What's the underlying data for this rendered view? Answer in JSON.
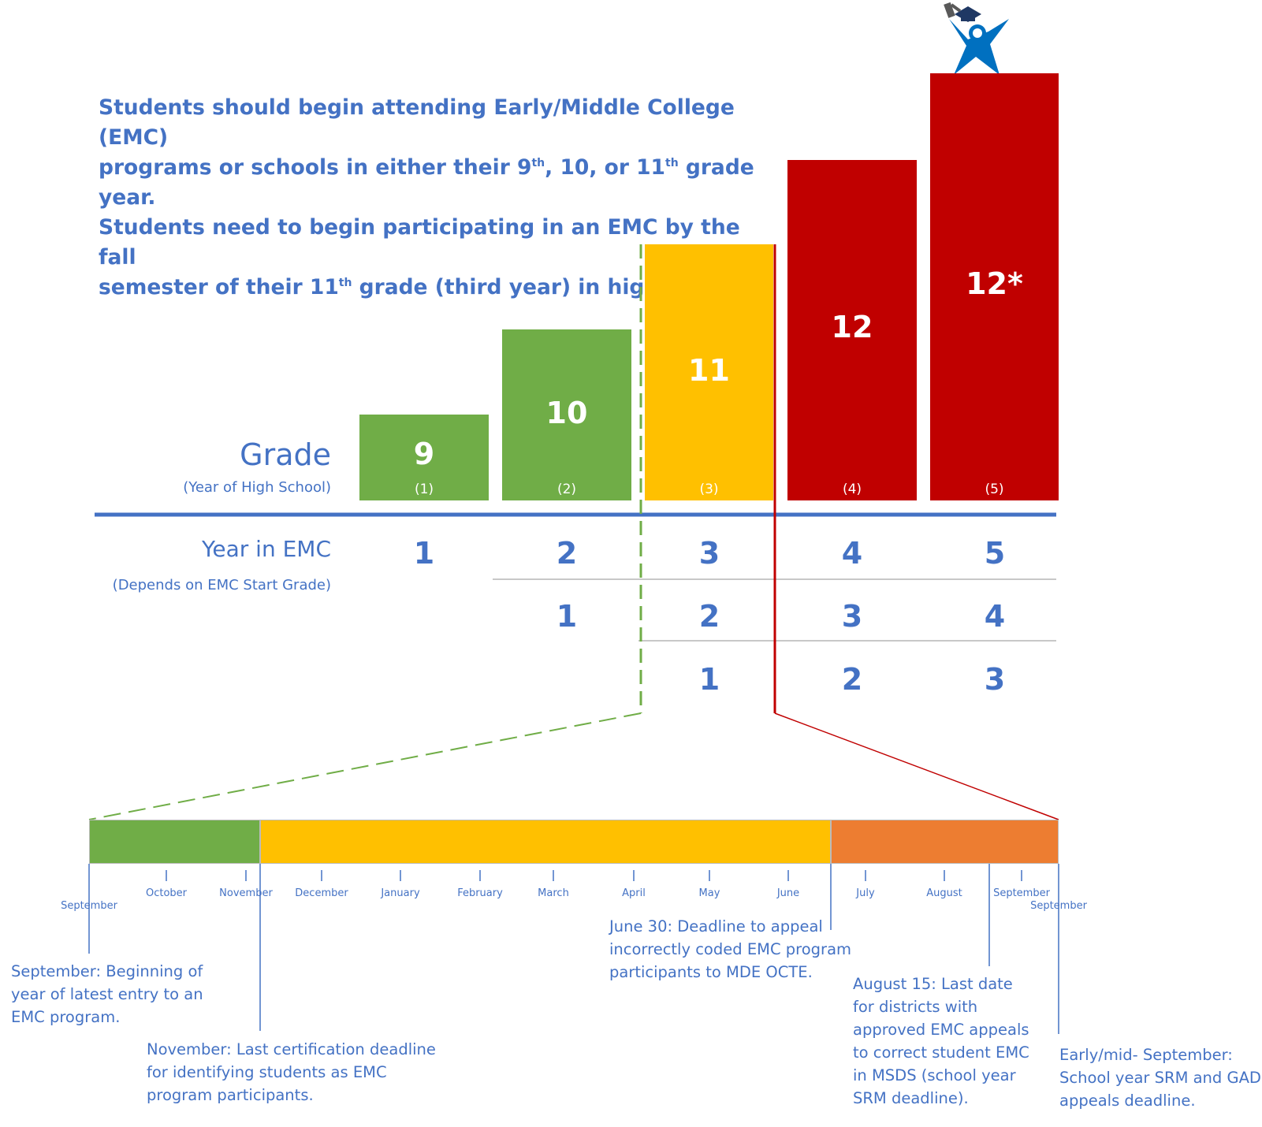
{
  "intro": {
    "line1": "Students should begin attending Early/Middle College (EMC)",
    "line2_a": "programs or schools in either their 9",
    "line2_sup1": "th",
    "line2_b": ", 10, or 11",
    "line2_sup2": "th",
    "line2_c": " grade year.",
    "line3": "Students need to begin participating in an EMC by the fall",
    "line4_a": "semester of their 11",
    "line4_sup": "th",
    "line4_b": " grade (third year) in high school."
  },
  "grade_axis": {
    "label": "Grade",
    "sublabel": "(Year of High School)"
  },
  "grades": [
    {
      "grade": "9",
      "year": "(1)",
      "color": "#70AD47"
    },
    {
      "grade": "10",
      "year": "(2)",
      "color": "#70AD47"
    },
    {
      "grade": "11",
      "year": "(3)",
      "color": "#FFC000"
    },
    {
      "grade": "12",
      "year": "(4)",
      "color": "#C00000"
    },
    {
      "grade": "12*",
      "year": "(5)",
      "color": "#C00000"
    }
  ],
  "emc_axis": {
    "label": "Year in EMC",
    "sublabel": "(Depends on EMC Start Grade)"
  },
  "emc_rows": [
    [
      "1",
      "2",
      "3",
      "4",
      "5"
    ],
    [
      "1",
      "2",
      "3",
      "4"
    ],
    [
      "1",
      "2",
      "3"
    ]
  ],
  "timeline": {
    "months": [
      "September",
      "October",
      "November",
      "December",
      "January",
      "February",
      "March",
      "April",
      "May",
      "June",
      "July",
      "August",
      "September",
      "September"
    ],
    "segment_colors": [
      "#70AD47",
      "#FFC000",
      "#ED7D31"
    ]
  },
  "notes": {
    "september": "September: Beginning of year of latest entry to an EMC program.",
    "november": "November: Last certification deadline for identifying students as EMC program participants.",
    "june30": "June 30: Deadline to appeal incorrectly coded EMC program participants to MDE OCTE.",
    "aug15": "August 15: Last date for districts with approved EMC appeals to correct student EMC in MSDS (school year SRM deadline).",
    "early_sept": "Early/mid- September: School year SRM and GAD appeals deadline."
  },
  "colors": {
    "text_blue": "#4472C4",
    "green": "#70AD47",
    "yellow": "#FFC000",
    "red": "#C00000",
    "orange": "#ED7D31",
    "icon_blue": "#0070C0",
    "cap": "#1F3864"
  }
}
